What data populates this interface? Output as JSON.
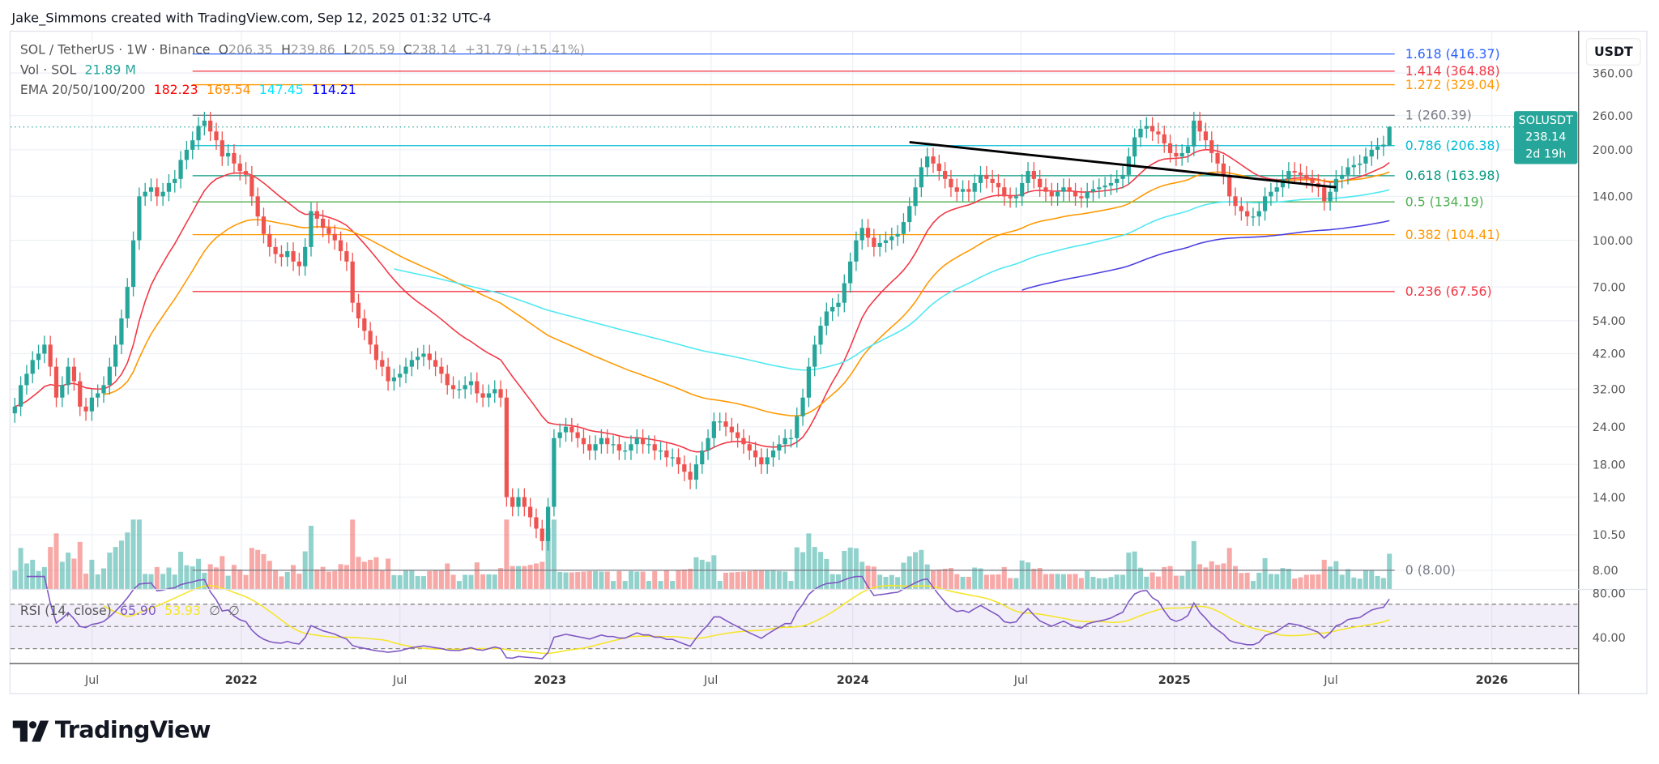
{
  "credit": "Jake_Simmons created with TradingView.com, Sep 12, 2025 01:32 UTC-4",
  "legend": {
    "symbol": "SOL / TetherUS · 1W · Binance",
    "o_label": "O",
    "o": "206.35",
    "h_label": "H",
    "h": "239.86",
    "l_label": "L",
    "l": "205.59",
    "c_label": "C",
    "c": "238.14",
    "change": "+31.79 (+15.41%)",
    "vol_label": "Vol · SOL",
    "vol": "21.89 M",
    "ema_label": "EMA 20/50/100/200",
    "ema20": "182.23",
    "ema50": "169.54",
    "ema100": "147.45",
    "ema200": "114.21",
    "rsi_label": "RSI (14, close)",
    "rsi": "65.90",
    "rsi_ma": "53.93",
    "rsi_na1": "∅",
    "rsi_na2": "∅"
  },
  "colors": {
    "up": "#26a69a",
    "down": "#ef5350",
    "ema20": "#f23645",
    "ema50": "#ff9800",
    "ema100": "#4ee8f2",
    "ema200": "#4b3fe0",
    "rsi": "#7e57c2",
    "rsi_ma": "#f5e52a"
  },
  "price_tag": {
    "symbol": "SOLUSDT",
    "price": "238.14",
    "countdown": "2d 19h"
  },
  "logo": "TradingView",
  "chart_data": {
    "type": "candlestick",
    "interval": "1W",
    "scale": "log",
    "currency": "USDT",
    "start_date": "2021-04-26",
    "closes": [
      28,
      33,
      36,
      40,
      42,
      45,
      38,
      30,
      33,
      38,
      34,
      28,
      27,
      30,
      31,
      33,
      38,
      45,
      55,
      70,
      100,
      140,
      145,
      150,
      140,
      145,
      155,
      160,
      185,
      200,
      215,
      240,
      250,
      230,
      215,
      190,
      195,
      180,
      170,
      165,
      140,
      120,
      105,
      95,
      90,
      88,
      92,
      85,
      82,
      95,
      125,
      118,
      110,
      105,
      100,
      92,
      85,
      62,
      55,
      50,
      45,
      40,
      38,
      34,
      35,
      36,
      38,
      40,
      41,
      42,
      40,
      38,
      36,
      33,
      32,
      32,
      33,
      34,
      31,
      30,
      31,
      32,
      30,
      14,
      13,
      14,
      13,
      12,
      11,
      10,
      13,
      22,
      23,
      24,
      23,
      22,
      21,
      20,
      21,
      22,
      21,
      21,
      20,
      20,
      21,
      22,
      21,
      21,
      20,
      20,
      19,
      19,
      18,
      17,
      16,
      18,
      20,
      22,
      25,
      25,
      24,
      23,
      22,
      21,
      20,
      19,
      18,
      19,
      20,
      21,
      22,
      22,
      26,
      30,
      38,
      45,
      52,
      58,
      60,
      62,
      72,
      85,
      100,
      110,
      102,
      95,
      98,
      100,
      103,
      105,
      115,
      130,
      150,
      175,
      190,
      180,
      170,
      160,
      150,
      145,
      148,
      145,
      155,
      165,
      160,
      155,
      150,
      140,
      138,
      140,
      155,
      170,
      160,
      150,
      145,
      140,
      145,
      150,
      145,
      140,
      138,
      145,
      148,
      150,
      152,
      155,
      160,
      165,
      190,
      220,
      235,
      240,
      230,
      225,
      210,
      195,
      190,
      195,
      205,
      250,
      230,
      215,
      195,
      180,
      165,
      140,
      130,
      125,
      120,
      120,
      125,
      140,
      145,
      150,
      160,
      170,
      168,
      165,
      160,
      155,
      150,
      135,
      145,
      160,
      165,
      175,
      178,
      180,
      190,
      200,
      205,
      208,
      238.14
    ],
    "last": {
      "open": 206.35,
      "high": 239.86,
      "low": 205.59,
      "close": 238.14
    },
    "y_ticks": [
      "360.00",
      "260.00",
      "200.00",
      "140.00",
      "100.00",
      "70.00",
      "54.00",
      "42.00",
      "32.00",
      "24.00",
      "18.00",
      "14.00",
      "10.50",
      "8.00"
    ],
    "rsi_ticks": [
      "80.00",
      "40.00"
    ],
    "x_ticks": [
      {
        "label": "Jul",
        "year": false
      },
      {
        "label": "2022",
        "year": true
      },
      {
        "label": "Jul",
        "year": false
      },
      {
        "label": "2023",
        "year": true
      },
      {
        "label": "Jul",
        "year": false
      },
      {
        "label": "2024",
        "year": true
      },
      {
        "label": "Jul",
        "year": false
      },
      {
        "label": "2025",
        "year": true
      },
      {
        "label": "Jul",
        "year": false
      },
      {
        "label": "2026",
        "year": true
      }
    ],
    "fib_start_date": "2021-11-22",
    "fib_levels": [
      {
        "ratio": "1.618",
        "price": 416.37,
        "label": "1.618 (416.37)",
        "color": "#2962ff"
      },
      {
        "ratio": "1.414",
        "price": 364.88,
        "label": "1.414 (364.88)",
        "color": "#f23645"
      },
      {
        "ratio": "1.272",
        "price": 329.04,
        "label": "1.272 (329.04)",
        "color": "#ff9800"
      },
      {
        "ratio": "1",
        "price": 260.39,
        "label": "1 (260.39)",
        "color": "#787b86"
      },
      {
        "ratio": "0.786",
        "price": 206.38,
        "label": "0.786 (206.38)",
        "color": "#00bcd4"
      },
      {
        "ratio": "0.618",
        "price": 163.98,
        "label": "0.618 (163.98)",
        "color": "#089981"
      },
      {
        "ratio": "0.5",
        "price": 134.19,
        "label": "0.5 (134.19)",
        "color": "#4caf50"
      },
      {
        "ratio": "0.382",
        "price": 104.41,
        "label": "0.382 (104.41)",
        "color": "#ff9800"
      },
      {
        "ratio": "0.236",
        "price": 67.56,
        "label": "0.236 (67.56)",
        "color": "#f23645"
      },
      {
        "ratio": "0",
        "price": 8.0,
        "label": "0 (8.00)",
        "color": "#787b86"
      }
    ],
    "trendline": {
      "start": {
        "date": "2024-03-18",
        "price": 212
      },
      "end": {
        "date": "2025-08-04",
        "price": 150
      },
      "color": "#000000"
    },
    "ema_lengths": [
      20,
      50,
      100,
      200
    ],
    "rsi": {
      "length": 14,
      "bands": [
        70,
        50,
        30
      ]
    }
  }
}
